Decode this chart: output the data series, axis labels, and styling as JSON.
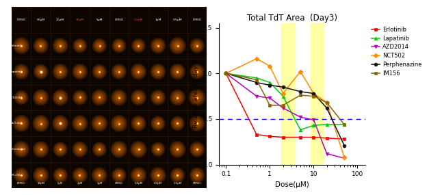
{
  "title": "Total TdT Area  (Day3)",
  "xlabel": "Dose(μM)",
  "ylabel": "Relative area to day 0",
  "xlim": [
    0.07,
    150
  ],
  "ylim": [
    0.0,
    1.55
  ],
  "yticks": [
    0.0,
    0.5,
    1.0,
    1.5
  ],
  "dashed_line_y": 0.5,
  "highlight_bands": [
    {
      "xmin": 1.8,
      "xmax": 3.8
    },
    {
      "xmin": 8.5,
      "xmax": 17.0
    }
  ],
  "col_labels_top": [
    "DMSO",
    "50μM",
    "25μM",
    "10μM",
    "5μM",
    "DMSO",
    "2.5μM",
    "1μM",
    "0.5μM",
    "DMSO"
  ],
  "col_labels_bottom": [
    "DMSO",
    "10μM",
    "5μM",
    "2μM",
    "1μM",
    "DMSO",
    "0.5μM",
    "0.2μM",
    "0.1μM",
    "DMSO"
  ],
  "row_labels": [
    "Erlotinib",
    "Lapatinib",
    "AZD2014",
    "NCT-502",
    "Perphenazine"
  ],
  "last_row_label": "IM-156",
  "red_cols_top": [
    "10μM",
    "2.5μM"
  ],
  "series": [
    {
      "name": "Erlotinib",
      "color": "#FF0000",
      "marker": "s",
      "x": [
        0.1,
        0.5,
        1.0,
        2.0,
        5.0,
        10.0,
        20.0,
        50.0
      ],
      "y": [
        1.0,
        0.33,
        0.31,
        0.3,
        0.3,
        0.3,
        0.29,
        0.28
      ]
    },
    {
      "name": "Lapatinib",
      "color": "#00CC00",
      "marker": "^",
      "x": [
        0.1,
        0.5,
        1.0,
        2.0,
        5.0,
        10.0,
        20.0,
        50.0
      ],
      "y": [
        1.0,
        0.95,
        0.9,
        0.75,
        0.38,
        0.43,
        0.44,
        0.44
      ]
    },
    {
      "name": "AZD2014",
      "color": "#BB00BB",
      "marker": "v",
      "x": [
        0.1,
        0.5,
        1.0,
        2.0,
        5.0,
        10.0,
        20.0,
        50.0
      ],
      "y": [
        1.0,
        0.75,
        0.73,
        0.62,
        0.52,
        0.49,
        0.12,
        0.07
      ]
    },
    {
      "name": "NCT502",
      "color": "#FF8C00",
      "marker": "D",
      "x": [
        0.1,
        0.5,
        1.0,
        2.0,
        5.0,
        10.0,
        20.0,
        50.0
      ],
      "y": [
        1.0,
        1.16,
        1.08,
        0.78,
        1.02,
        0.78,
        0.68,
        0.08
      ]
    },
    {
      "name": "Perphenazine",
      "color": "#111111",
      "marker": "o",
      "x": [
        0.1,
        0.5,
        1.0,
        2.0,
        5.0,
        10.0,
        20.0,
        50.0
      ],
      "y": [
        1.0,
        0.9,
        0.87,
        0.85,
        0.8,
        0.78,
        0.62,
        0.21
      ]
    },
    {
      "name": "IM156",
      "color": "#8B6400",
      "marker": "s",
      "x": [
        0.1,
        0.5,
        1.0,
        2.0,
        5.0,
        10.0,
        20.0,
        50.0
      ],
      "y": [
        1.0,
        0.93,
        0.65,
        0.65,
        0.76,
        0.75,
        0.68,
        0.44
      ]
    }
  ]
}
